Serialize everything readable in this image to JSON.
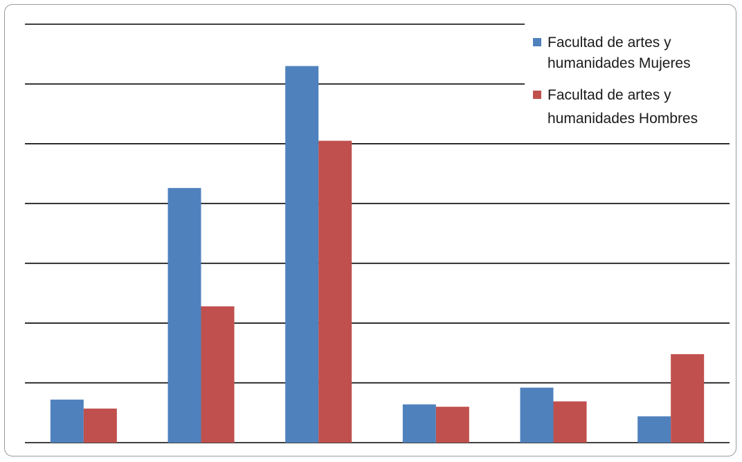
{
  "chart_data": {
    "type": "bar",
    "title": "",
    "xlabel": "",
    "ylabel": "",
    "ylim": [
      0,
      7
    ],
    "grid": true,
    "legend_position": "top-right",
    "series": [
      {
        "name": "Facultad de artes y humanidades Mujeres",
        "color": "#4F81BD",
        "values": [
          0.72,
          4.26,
          6.3,
          0.64,
          0.92,
          0.44
        ]
      },
      {
        "name": "Facultad de artes y humanidades Hombres",
        "color": "#C0504D",
        "values": [
          0.57,
          2.28,
          5.05,
          0.6,
          0.69,
          1.48
        ]
      }
    ],
    "legend": {
      "items": [
        {
          "line1": "Facultad de artes y",
          "line2": "humanidades Mujeres"
        },
        {
          "line1": "Facultad de artes y",
          "line2": "humanidades Hombres"
        }
      ]
    }
  }
}
